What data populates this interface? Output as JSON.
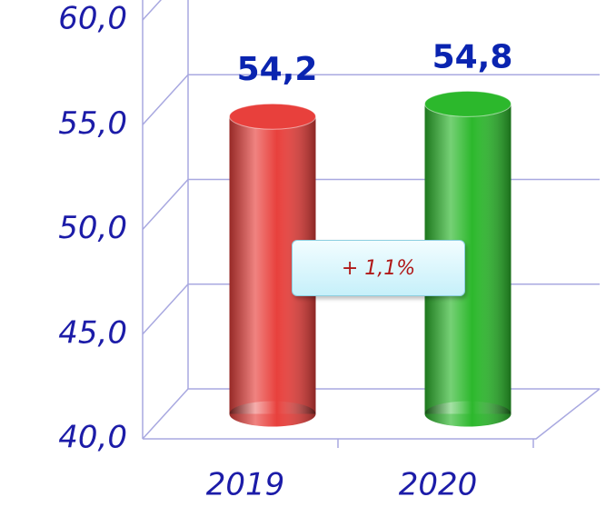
{
  "chart_data": {
    "type": "bar3d",
    "categories": [
      "2019",
      "2020"
    ],
    "values": [
      54.2,
      54.8
    ],
    "value_labels": [
      "54,2",
      "54,8"
    ],
    "colors": [
      "#e8403c",
      "#2cb82c"
    ],
    "ylim": [
      40,
      60
    ],
    "yticks": [
      {
        "value": 40,
        "label": "40,0"
      },
      {
        "value": 45,
        "label": "45,0"
      },
      {
        "value": 50,
        "label": "50,0"
      },
      {
        "value": 55,
        "label": "55,0"
      },
      {
        "value": 60,
        "label": "60,0"
      }
    ],
    "grid": true,
    "annotation": "+ 1,1%"
  }
}
